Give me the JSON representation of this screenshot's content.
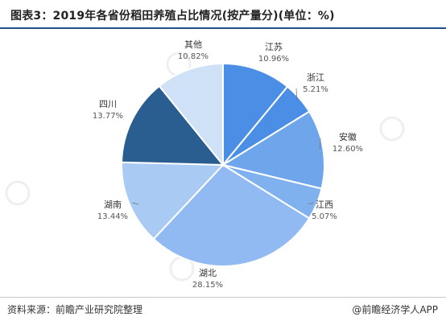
{
  "title": "图表3：2019年各省份稻田养殖占比情况(按产量分)(单位：%)",
  "footer": {
    "source": "资料来源：前瞻产业研究院整理",
    "credit": "@前瞻经济学人APP"
  },
  "colors": {
    "title_rule": "#1f4e8c",
    "slices": [
      "#4a8ee6",
      "#4a8ee6",
      "#6fa5ea",
      "#7eb1ee",
      "#90baf1",
      "#a9caf3",
      "#2a5d90",
      "#cfe1f7"
    ]
  },
  "chart_data": {
    "type": "pie",
    "title": "图表3：2019年各省份稻田养殖占比情况(按产量分)(单位：%)",
    "start": "12 o'clock",
    "direction": "clockwise",
    "slices": [
      {
        "name": "江苏",
        "value": 10.96,
        "label": "10.96%"
      },
      {
        "name": "浙江",
        "value": 5.21,
        "label": "5.21%"
      },
      {
        "name": "安徽",
        "value": 12.6,
        "label": "12.60%"
      },
      {
        "name": "江西",
        "value": 5.07,
        "label": "5.07%"
      },
      {
        "name": "湖北",
        "value": 28.15,
        "label": "28.15%"
      },
      {
        "name": "湖南",
        "value": 13.44,
        "label": "13.44%"
      },
      {
        "name": "四川",
        "value": 13.77,
        "label": "13.77%"
      },
      {
        "name": "其他",
        "value": 10.82,
        "label": "10.82%"
      }
    ]
  }
}
